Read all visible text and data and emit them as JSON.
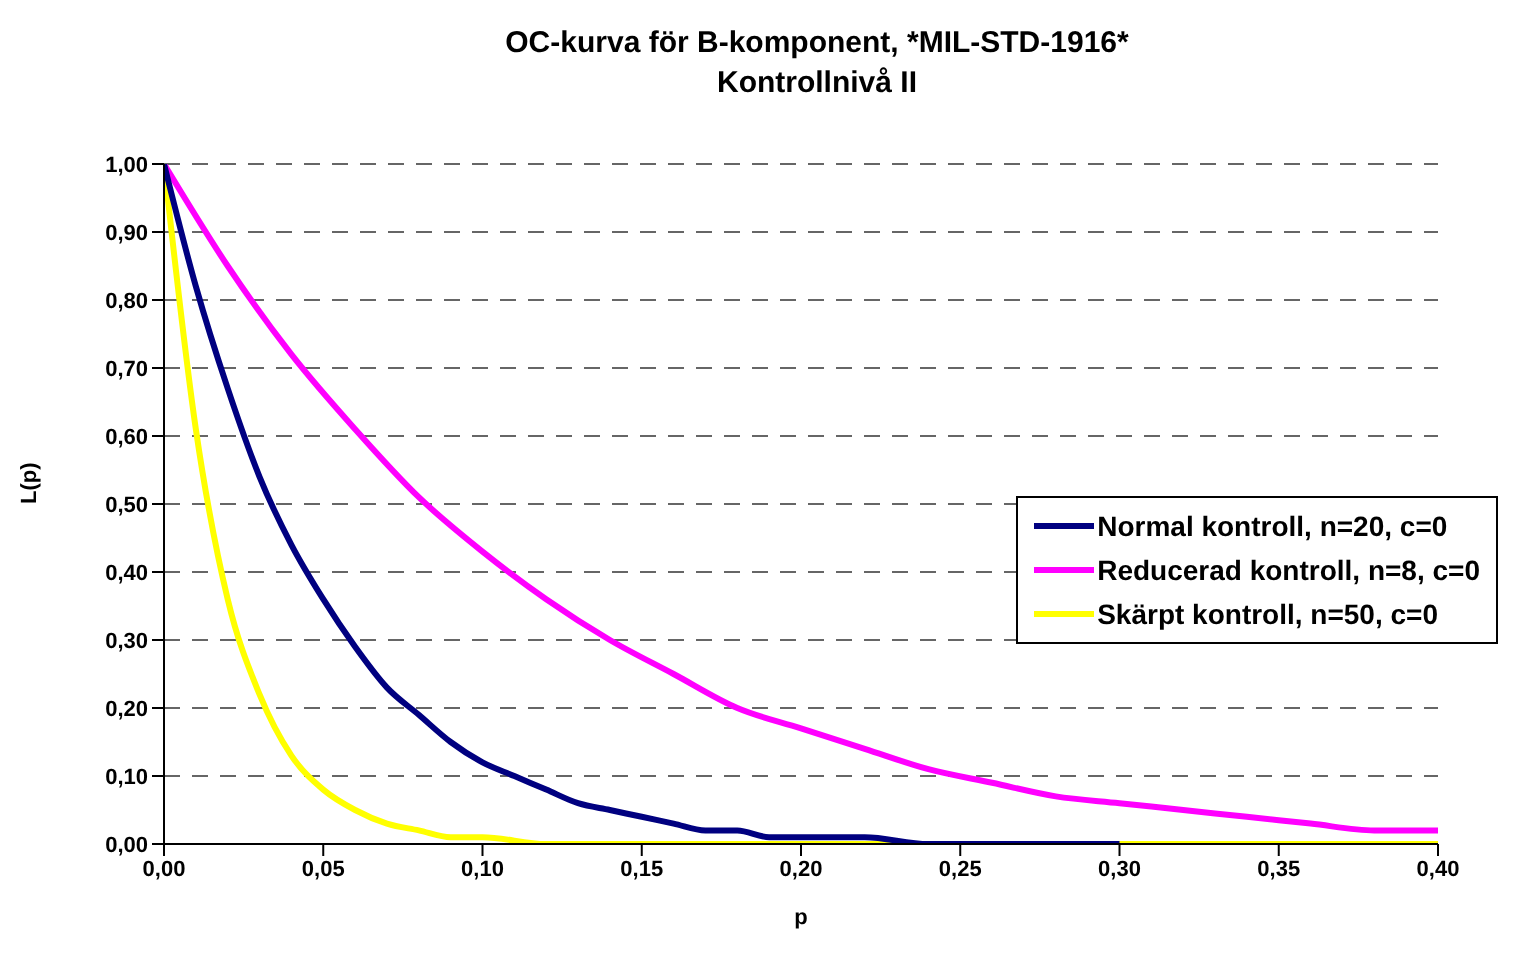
{
  "chart_data": {
    "type": "line",
    "title": "OC-kurva för B-komponent, *MIL-STD-1916*",
    "subtitle": "Kontrollnivå II",
    "xlabel": "p",
    "ylabel": "L(p)",
    "xlim": [
      0,
      0.4
    ],
    "xticks": [
      {
        "value": 0,
        "label": "0,00"
      },
      {
        "value": 0.05,
        "label": "0,05"
      },
      {
        "value": 0.1,
        "label": "0,10"
      },
      {
        "value": 0.15,
        "label": "0,15"
      },
      {
        "value": 0.2,
        "label": "0,20"
      },
      {
        "value": 0.25,
        "label": "0,25"
      },
      {
        "value": 0.3,
        "label": "0,30"
      },
      {
        "value": 0.35,
        "label": "0,35"
      },
      {
        "value": 0.4,
        "label": "0,40"
      }
    ],
    "ylim": [
      0,
      1
    ],
    "yticks": [
      {
        "value": 0,
        "label": "0,00"
      },
      {
        "value": 0.1,
        "label": "0,10"
      },
      {
        "value": 0.2,
        "label": "0,20"
      },
      {
        "value": 0.3,
        "label": "0,30"
      },
      {
        "value": 0.4,
        "label": "0,40"
      },
      {
        "value": 0.5,
        "label": "0,50"
      },
      {
        "value": 0.6,
        "label": "0,60"
      },
      {
        "value": 0.7,
        "label": "0,70"
      },
      {
        "value": 0.8,
        "label": "0,80"
      },
      {
        "value": 0.9,
        "label": "0,90"
      },
      {
        "value": 1,
        "label": "1,00"
      }
    ],
    "grid": "y",
    "legend": "right",
    "series": [
      {
        "name": "Normal kontroll, n=20, c=0",
        "color": "#000080",
        "x": [
          0,
          0.01,
          0.02,
          0.03,
          0.04,
          0.05,
          0.06,
          0.07,
          0.08,
          0.09,
          0.1,
          0.11,
          0.12,
          0.13,
          0.14,
          0.15,
          0.16,
          0.17,
          0.18,
          0.19,
          0.2,
          0.22,
          0.24,
          0.26,
          0.28,
          0.3
        ],
        "values": [
          1,
          0.82,
          0.67,
          0.54,
          0.44,
          0.36,
          0.29,
          0.23,
          0.19,
          0.15,
          0.12,
          0.1,
          0.08,
          0.06,
          0.05,
          0.04,
          0.03,
          0.02,
          0.02,
          0.01,
          0.01,
          0.01,
          0,
          0,
          0,
          0
        ]
      },
      {
        "name": "Reducerad kontroll, n=8, c=0",
        "color": "#ff00ff",
        "x": [
          0,
          0.02,
          0.04,
          0.06,
          0.08,
          0.1,
          0.12,
          0.14,
          0.16,
          0.18,
          0.2,
          0.22,
          0.24,
          0.26,
          0.28,
          0.3,
          0.32,
          0.34,
          0.36,
          0.38,
          0.4
        ],
        "values": [
          1,
          0.85,
          0.72,
          0.61,
          0.51,
          0.43,
          0.36,
          0.3,
          0.25,
          0.2,
          0.17,
          0.14,
          0.11,
          0.09,
          0.07,
          0.06,
          0.05,
          0.04,
          0.03,
          0.02,
          0.02
        ]
      },
      {
        "name": "Skärpt kontroll, n=50, c=0",
        "color": "#ffff00",
        "x": [
          0,
          0.01,
          0.02,
          0.03,
          0.04,
          0.05,
          0.06,
          0.07,
          0.08,
          0.09,
          0.1,
          0.12,
          0.15,
          0.35,
          0.4
        ],
        "values": [
          1,
          0.61,
          0.36,
          0.22,
          0.13,
          0.08,
          0.05,
          0.03,
          0.02,
          0.01,
          0.01,
          0,
          0,
          0,
          0
        ]
      }
    ]
  }
}
